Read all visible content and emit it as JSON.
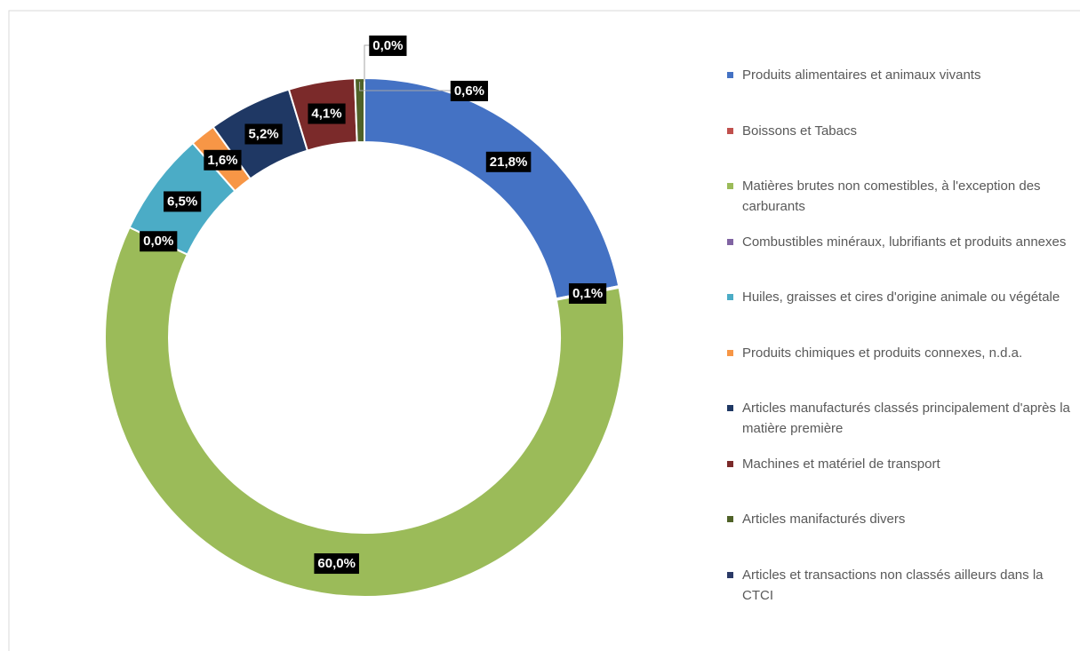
{
  "chart_data": {
    "type": "donut",
    "categories": [
      "Produits alimentaires et animaux vivants",
      "Boissons et Tabacs",
      "Matières brutes non comestibles, à l'exception des carburants",
      "Combustibles minéraux, lubrifiants et produits annexes",
      "Huiles, graisses et cires d'origine animale ou végétale",
      "Produits chimiques et produits connexes, n.d.a.",
      "Articles manufacturés classés principalement d'après la matière première",
      "Machines et matériel de transport",
      "Articles manifacturés divers",
      "Articles et transactions non classés ailleurs dans la CTCI"
    ],
    "values": [
      21.8,
      0.1,
      60.0,
      0.0,
      6.5,
      1.6,
      5.2,
      4.1,
      0.6,
      0.0
    ],
    "value_labels": [
      "21,8%",
      "0,1%",
      "60,0%",
      "0,0%",
      "6,5%",
      "1,6%",
      "5,2%",
      "4,1%",
      "0,6%",
      "0,0%"
    ],
    "colors": [
      "#4472c4",
      "#c0504d",
      "#9bbb59",
      "#8064a2",
      "#4bacc6",
      "#f79646",
      "#1f3864",
      "#7b2a2a",
      "#4f6228",
      "#2b3a67"
    ],
    "legend": "right"
  }
}
